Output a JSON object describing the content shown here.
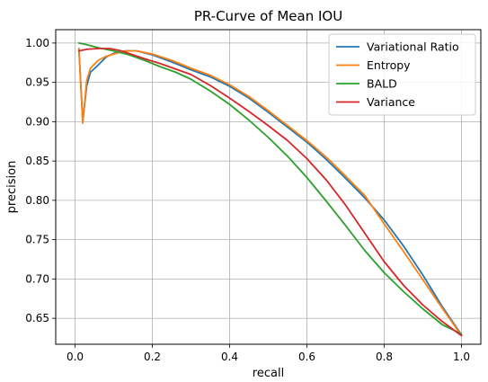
{
  "chart_data": {
    "type": "line",
    "title": "PR-Curve of Mean IOU",
    "xlabel": "recall",
    "ylabel": "precision",
    "xlim": [
      -0.05,
      1.05
    ],
    "ylim": [
      0.617,
      1.017
    ],
    "grid": true,
    "legend_position": "top-right",
    "x_ticks": [
      0.0,
      0.2,
      0.4,
      0.6,
      0.8,
      1.0
    ],
    "x_tick_labels": [
      "0.0",
      "0.2",
      "0.4",
      "0.6",
      "0.8",
      "1.0"
    ],
    "y_ticks": [
      0.65,
      0.7,
      0.75,
      0.8,
      0.85,
      0.9,
      0.95,
      1.0
    ],
    "y_tick_labels": [
      "0.65",
      "0.70",
      "0.75",
      "0.80",
      "0.85",
      "0.90",
      "0.95",
      "1.00"
    ],
    "series": [
      {
        "name": "Variational Ratio",
        "color": "#1f77b4",
        "x": [
          0.01,
          0.02,
          0.03,
          0.04,
          0.06,
          0.08,
          0.1,
          0.13,
          0.16,
          0.2,
          0.25,
          0.3,
          0.35,
          0.4,
          0.45,
          0.5,
          0.55,
          0.6,
          0.65,
          0.7,
          0.75,
          0.8,
          0.85,
          0.9,
          0.95,
          1.0
        ],
        "y": [
          0.993,
          0.9,
          0.945,
          0.963,
          0.972,
          0.982,
          0.987,
          0.99,
          0.99,
          0.985,
          0.976,
          0.966,
          0.957,
          0.945,
          0.93,
          0.912,
          0.893,
          0.874,
          0.852,
          0.828,
          0.803,
          0.775,
          0.742,
          0.705,
          0.665,
          0.629
        ]
      },
      {
        "name": "Entropy",
        "color": "#ff7f0e",
        "x": [
          0.01,
          0.02,
          0.03,
          0.04,
          0.06,
          0.08,
          0.1,
          0.13,
          0.16,
          0.2,
          0.25,
          0.3,
          0.35,
          0.4,
          0.45,
          0.5,
          0.55,
          0.6,
          0.65,
          0.7,
          0.75,
          0.8,
          0.85,
          0.9,
          0.95,
          1.0
        ],
        "y": [
          0.993,
          0.898,
          0.952,
          0.968,
          0.978,
          0.983,
          0.986,
          0.99,
          0.99,
          0.986,
          0.978,
          0.968,
          0.959,
          0.947,
          0.932,
          0.914,
          0.895,
          0.876,
          0.855,
          0.831,
          0.806,
          0.77,
          0.735,
          0.699,
          0.663,
          0.628
        ]
      },
      {
        "name": "BALD",
        "color": "#2ca02c",
        "x": [
          0.01,
          0.03,
          0.06,
          0.1,
          0.14,
          0.18,
          0.22,
          0.26,
          0.3,
          0.35,
          0.4,
          0.45,
          0.5,
          0.55,
          0.6,
          0.65,
          0.7,
          0.75,
          0.8,
          0.85,
          0.9,
          0.95,
          1.0
        ],
        "y": [
          1.0,
          0.998,
          0.994,
          0.99,
          0.985,
          0.978,
          0.97,
          0.963,
          0.954,
          0.939,
          0.922,
          0.902,
          0.88,
          0.856,
          0.829,
          0.799,
          0.768,
          0.736,
          0.708,
          0.684,
          0.662,
          0.642,
          0.63
        ]
      },
      {
        "name": "Variance",
        "color": "#d62728",
        "x": [
          0.01,
          0.03,
          0.06,
          0.09,
          0.12,
          0.15,
          0.18,
          0.22,
          0.26,
          0.3,
          0.35,
          0.4,
          0.45,
          0.5,
          0.55,
          0.6,
          0.65,
          0.7,
          0.75,
          0.8,
          0.85,
          0.9,
          0.95,
          1.0
        ],
        "y": [
          0.99,
          0.992,
          0.993,
          0.993,
          0.99,
          0.985,
          0.98,
          0.974,
          0.967,
          0.96,
          0.946,
          0.93,
          0.913,
          0.895,
          0.876,
          0.853,
          0.826,
          0.794,
          0.758,
          0.722,
          0.692,
          0.667,
          0.646,
          0.628
        ]
      }
    ]
  }
}
